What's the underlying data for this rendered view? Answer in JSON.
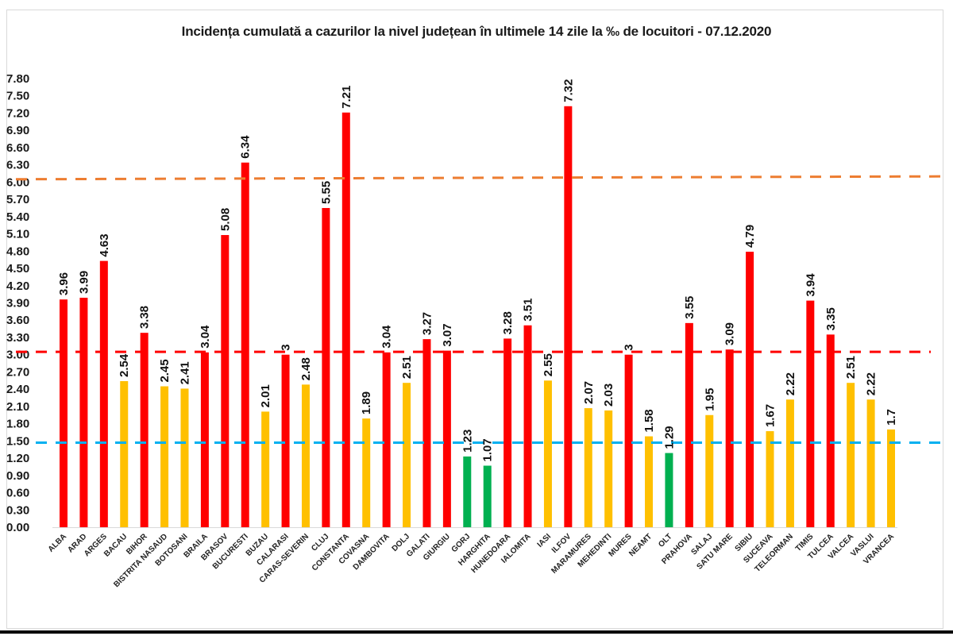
{
  "chart_data": {
    "type": "bar",
    "title": "Incidența cumulată a cazurilor la nivel județean în ultimele 14 zile la ‰ de locuitori - 07.12.2020",
    "xlabel": "",
    "ylabel": "",
    "ylim": [
      0,
      7.8
    ],
    "yticks": [
      "0.00",
      "0.30",
      "0.60",
      "0.90",
      "1.20",
      "1.50",
      "1.80",
      "2.10",
      "2.40",
      "2.70",
      "3.00",
      "3.30",
      "3.60",
      "3.90",
      "4.20",
      "4.50",
      "4.80",
      "5.10",
      "5.40",
      "5.70",
      "6.00",
      "6.30",
      "6.60",
      "6.90",
      "7.20",
      "7.50",
      "7.80"
    ],
    "grid": false,
    "legend": "none",
    "categories": [
      "ALBA",
      "ARAD",
      "ARGES",
      "BACAU",
      "BIHOR",
      "BISTRITA NASAUD",
      "BOTOSANI",
      "BRAILA",
      "BRASOV",
      "BUCURESTI",
      "BUZAU",
      "CALARASI",
      "CARAS-SEVERIN",
      "CLUJ",
      "CONSTANTA",
      "COVASNA",
      "DAMBOVITA",
      "DOLJ",
      "GALATI",
      "GIURGIU",
      "GORJ",
      "HARGHITA",
      "HUNEDOARA",
      "IALOMITA",
      "IASI",
      "ILFOV",
      "MARAMURES",
      "MEHEDINTI",
      "MURES",
      "NEAMT",
      "OLT",
      "PRAHOVA",
      "SALAJ",
      "SATU MARE",
      "SIBIU",
      "SUCEAVA",
      "TELEORMAN",
      "TIMIS",
      "TULCEA",
      "VALCEA",
      "VASLUI",
      "VRANCEA"
    ],
    "values": [
      3.96,
      3.99,
      4.63,
      2.54,
      3.38,
      2.45,
      2.41,
      3.04,
      5.08,
      6.34,
      2.01,
      3,
      2.48,
      5.55,
      7.21,
      1.89,
      3.04,
      2.51,
      3.27,
      3.07,
      1.23,
      1.07,
      3.28,
      3.51,
      2.55,
      7.32,
      2.07,
      2.03,
      3,
      1.58,
      1.29,
      3.55,
      1.95,
      3.09,
      4.79,
      1.67,
      2.22,
      3.94,
      3.35,
      2.51,
      2.22,
      1.7
    ],
    "data_labels": [
      "3.96",
      "3.99",
      "4.63",
      "2.54",
      "3.38",
      "2.45",
      "2.41",
      "3.04",
      "5.08",
      "6.34",
      "2.01",
      "3",
      "2.48",
      "5.55",
      "7.21",
      "1.89",
      "3.04",
      "2.51",
      "3.27",
      "3.07",
      "1.23",
      "1.07",
      "3.28",
      "3.51",
      "2.55",
      "7.32",
      "2.07",
      "2.03",
      "3",
      "1.58",
      "1.29",
      "3.55",
      "1.95",
      "3.09",
      "4.79",
      "1.67",
      "2.22",
      "3.94",
      "3.35",
      "2.51",
      "2.22",
      "1.7"
    ],
    "color_rule": {
      "green_below": 1.5,
      "yellow_between": [
        1.5,
        3.0
      ],
      "red_at_or_above": 3.0
    },
    "colors": {
      "red": "#ff0000",
      "yellow": "#ffc000",
      "green": "#00b050"
    },
    "reference_lines": [
      {
        "name": "threshold-6",
        "value": 6.05,
        "value_right": 6.1,
        "color": "#ed7d31",
        "style": "dashed"
      },
      {
        "name": "threshold-3",
        "value": 3.05,
        "color": "#ff0000",
        "style": "dashed"
      },
      {
        "name": "threshold-1.5",
        "value": 1.47,
        "color": "#00b0f0",
        "style": "dashed"
      }
    ]
  }
}
